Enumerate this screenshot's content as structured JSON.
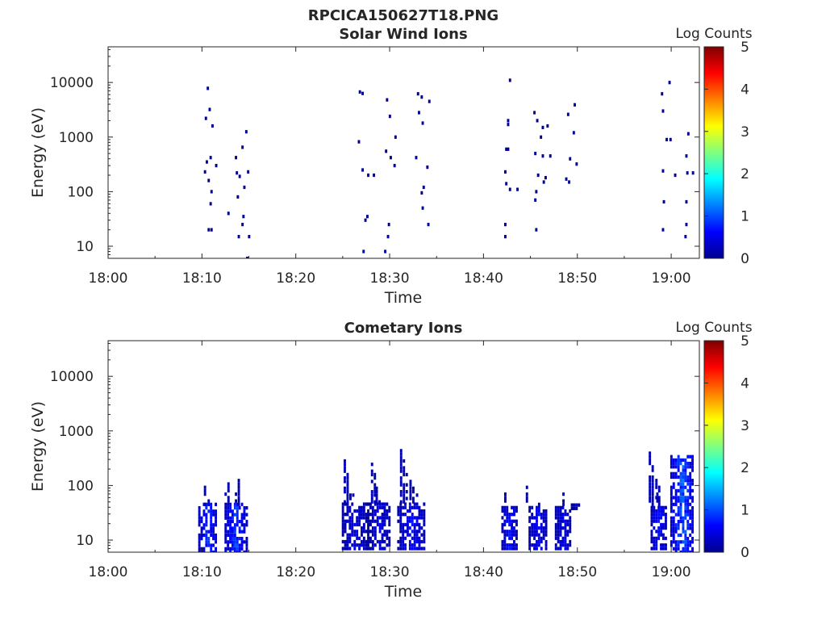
{
  "figure_title": "RPCICA150627T18.PNG",
  "chart_data": [
    {
      "type": "heatmap",
      "title": "Solar Wind Ions",
      "xlabel": "Time",
      "ylabel": "Energy (eV)",
      "x_ticks": [
        "18:00",
        "18:10",
        "18:20",
        "18:30",
        "18:40",
        "18:50",
        "19:00"
      ],
      "y_ticks": [
        "10",
        "100",
        "1000",
        "10000"
      ],
      "y_scale": "log",
      "xlim_minutes": [
        0,
        63
      ],
      "ylim_ev": [
        6,
        45000
      ],
      "colorbar": {
        "label": "Log Counts",
        "ticks": [
          "0",
          "1",
          "2",
          "3",
          "4",
          "5"
        ],
        "range": [
          0,
          5
        ],
        "colormap": "jet"
      },
      "cells": [
        [
          10.5,
          7800,
          0.1
        ],
        [
          10.7,
          3200,
          0.1
        ],
        [
          10.3,
          2200,
          0.1
        ],
        [
          11.0,
          1600,
          0.1
        ],
        [
          10.4,
          350,
          0.1
        ],
        [
          10.8,
          420,
          0.1
        ],
        [
          11.4,
          300,
          0.1
        ],
        [
          10.2,
          230,
          0.1
        ],
        [
          10.6,
          160,
          0.1
        ],
        [
          10.9,
          100,
          0.1
        ],
        [
          10.8,
          60,
          0.1
        ],
        [
          10.6,
          20,
          0.2
        ],
        [
          10.9,
          20,
          0.2
        ],
        [
          12.7,
          40,
          0.1
        ],
        [
          13.6,
          220,
          0.1
        ],
        [
          13.9,
          190,
          0.1
        ],
        [
          13.5,
          420,
          0.1
        ],
        [
          14.2,
          650,
          0.1
        ],
        [
          14.6,
          1250,
          0.1
        ],
        [
          14.4,
          120,
          0.1
        ],
        [
          13.7,
          80,
          0.1
        ],
        [
          14.8,
          230,
          0.1
        ],
        [
          14.3,
          35,
          0.1
        ],
        [
          13.8,
          15,
          0.2
        ],
        [
          14.2,
          25,
          0.1
        ],
        [
          14.9,
          15,
          0.2
        ],
        [
          14.7,
          6,
          0.1
        ],
        [
          26.7,
          6700,
          0.1
        ],
        [
          27.0,
          6300,
          0.1
        ],
        [
          26.6,
          820,
          0.1
        ],
        [
          27.0,
          250,
          0.1
        ],
        [
          27.6,
          200,
          0.1
        ],
        [
          28.2,
          200,
          0.1
        ],
        [
          27.5,
          35,
          0.1
        ],
        [
          27.3,
          30,
          0.1
        ],
        [
          27.1,
          8,
          0.2
        ],
        [
          29.6,
          4800,
          0.1
        ],
        [
          29.9,
          2400,
          0.1
        ],
        [
          30.5,
          1000,
          0.1
        ],
        [
          29.5,
          550,
          0.1
        ],
        [
          30.0,
          420,
          0.1
        ],
        [
          30.4,
          300,
          0.1
        ],
        [
          29.8,
          25,
          0.1
        ],
        [
          29.7,
          15,
          0.2
        ],
        [
          29.4,
          8,
          0.2
        ],
        [
          32.9,
          6200,
          0.1
        ],
        [
          33.3,
          5400,
          0.1
        ],
        [
          34.1,
          4500,
          0.1
        ],
        [
          33.0,
          2800,
          0.1
        ],
        [
          33.4,
          1800,
          0.1
        ],
        [
          32.7,
          420,
          0.1
        ],
        [
          33.9,
          280,
          0.1
        ],
        [
          33.5,
          120,
          0.1
        ],
        [
          33.3,
          95,
          0.1
        ],
        [
          33.4,
          50,
          0.1
        ],
        [
          34.0,
          25,
          0.2
        ],
        [
          42.7,
          11000,
          0.1
        ],
        [
          42.5,
          2000,
          0.1
        ],
        [
          42.5,
          1700,
          0.1
        ],
        [
          42.3,
          600,
          0.1
        ],
        [
          42.5,
          600,
          0.1
        ],
        [
          42.2,
          230,
          0.1
        ],
        [
          42.3,
          140,
          0.1
        ],
        [
          42.7,
          110,
          0.1
        ],
        [
          43.5,
          110,
          0.1
        ],
        [
          42.2,
          25,
          0.1
        ],
        [
          42.2,
          15,
          0.2
        ],
        [
          45.3,
          2800,
          0.1
        ],
        [
          45.6,
          2000,
          0.1
        ],
        [
          46.2,
          1500,
          0.1
        ],
        [
          46.7,
          1600,
          0.1
        ],
        [
          46.0,
          1000,
          0.1
        ],
        [
          45.4,
          500,
          0.1
        ],
        [
          46.2,
          450,
          0.1
        ],
        [
          47.0,
          450,
          0.1
        ],
        [
          45.7,
          200,
          0.1
        ],
        [
          46.5,
          180,
          0.1
        ],
        [
          46.3,
          150,
          0.1
        ],
        [
          45.5,
          100,
          0.1
        ],
        [
          45.4,
          70,
          0.1
        ],
        [
          45.5,
          20,
          0.2
        ],
        [
          48.9,
          2600,
          0.1
        ],
        [
          49.6,
          3900,
          0.1
        ],
        [
          49.5,
          1200,
          0.1
        ],
        [
          49.1,
          400,
          0.1
        ],
        [
          49.8,
          320,
          0.1
        ],
        [
          48.7,
          170,
          0.1
        ],
        [
          49.0,
          150,
          0.1
        ],
        [
          58.9,
          6200,
          0.1
        ],
        [
          59.7,
          10000,
          0.1
        ],
        [
          59.0,
          3000,
          0.1
        ],
        [
          59.4,
          900,
          0.1
        ],
        [
          59.8,
          900,
          0.1
        ],
        [
          59.0,
          240,
          0.1
        ],
        [
          60.3,
          200,
          0.1
        ],
        [
          61.7,
          1150,
          0.1
        ],
        [
          61.5,
          450,
          0.1
        ],
        [
          61.6,
          220,
          0.1
        ],
        [
          62.2,
          220,
          0.1
        ],
        [
          59.1,
          65,
          0.1
        ],
        [
          61.5,
          65,
          0.1
        ],
        [
          59.0,
          20,
          0.2
        ],
        [
          61.5,
          25,
          0.2
        ],
        [
          61.4,
          15,
          0.2
        ]
      ]
    },
    {
      "type": "heatmap",
      "title": "Cometary Ions",
      "xlabel": "Time",
      "ylabel": "Energy (eV)",
      "x_ticks": [
        "18:00",
        "18:10",
        "18:20",
        "18:30",
        "18:40",
        "18:50",
        "19:00"
      ],
      "y_ticks": [
        "10",
        "100",
        "1000",
        "10000"
      ],
      "y_scale": "log",
      "xlim_minutes": [
        0,
        63
      ],
      "ylim_ev": [
        6,
        45000
      ],
      "colorbar": {
        "label": "Log Counts",
        "ticks": [
          "0",
          "1",
          "2",
          "3",
          "4",
          "5"
        ],
        "range": [
          0,
          5
        ],
        "colormap": "jet"
      },
      "bursts": [
        {
          "t0": 9.6,
          "t1": 11.5,
          "e_low": 6,
          "e_high": 45,
          "peak": 1.0,
          "spikes": [
            [
              10.2,
              95
            ],
            [
              10.6,
              60
            ]
          ]
        },
        {
          "t0": 12.4,
          "t1": 14.7,
          "e_low": 6,
          "e_high": 45,
          "peak": 1.1,
          "spikes": [
            [
              12.7,
              140
            ],
            [
              12.4,
              80
            ],
            [
              13.5,
              70
            ],
            [
              13.8,
              130
            ]
          ]
        },
        {
          "t0": 24.9,
          "t1": 27.5,
          "e_low": 7,
          "e_high": 50,
          "peak": 0.6,
          "spikes": [
            [
              25.1,
              300
            ],
            [
              25.4,
              200
            ],
            [
              25.7,
              100
            ],
            [
              26.0,
              70
            ]
          ]
        },
        {
          "t0": 27.6,
          "t1": 30.0,
          "e_low": 7,
          "e_high": 50,
          "peak": 0.6,
          "spikes": [
            [
              28.0,
              260
            ],
            [
              28.3,
              160
            ],
            [
              28.5,
              100
            ],
            [
              28.8,
              70
            ]
          ]
        },
        {
          "t0": 30.8,
          "t1": 33.6,
          "e_low": 7,
          "e_high": 50,
          "peak": 0.8,
          "spikes": [
            [
              31.1,
              450
            ],
            [
              31.4,
              300
            ],
            [
              31.7,
              200
            ],
            [
              32.1,
              150
            ],
            [
              32.4,
              100
            ],
            [
              32.8,
              70
            ]
          ]
        },
        {
          "t0": 41.9,
          "t1": 43.5,
          "e_low": 7,
          "e_high": 45,
          "peak": 0.8,
          "spikes": [
            [
              42.2,
              80
            ]
          ]
        },
        {
          "t0": 44.8,
          "t1": 46.6,
          "e_low": 7,
          "e_high": 45,
          "peak": 0.8,
          "spikes": [
            [
              45.1,
              60
            ],
            [
              45.8,
              80
            ],
            [
              44.5,
              100
            ]
          ]
        },
        {
          "t0": 47.6,
          "t1": 49.2,
          "e_low": 7,
          "e_high": 45,
          "peak": 0.7,
          "spikes": [
            [
              48.4,
              80
            ]
          ]
        },
        {
          "t0": 49.3,
          "t1": 50.2,
          "e_low": 38,
          "e_high": 45,
          "peak": 0.3,
          "spikes": []
        },
        {
          "t0": 57.8,
          "t1": 59.3,
          "e_low": 7,
          "e_high": 45,
          "peak": 0.9,
          "spikes": [
            [
              57.6,
              420
            ],
            [
              57.9,
              220
            ],
            [
              58.3,
              160
            ],
            [
              58.6,
              100
            ],
            [
              58.4,
              80
            ]
          ]
        },
        {
          "t0": 59.9,
          "t1": 62.3,
          "e_low": 6,
          "e_high": 350,
          "peak": 1.3,
          "spikes": [
            [
              60.6,
              240
            ],
            [
              61.2,
              180
            ]
          ]
        }
      ]
    }
  ]
}
